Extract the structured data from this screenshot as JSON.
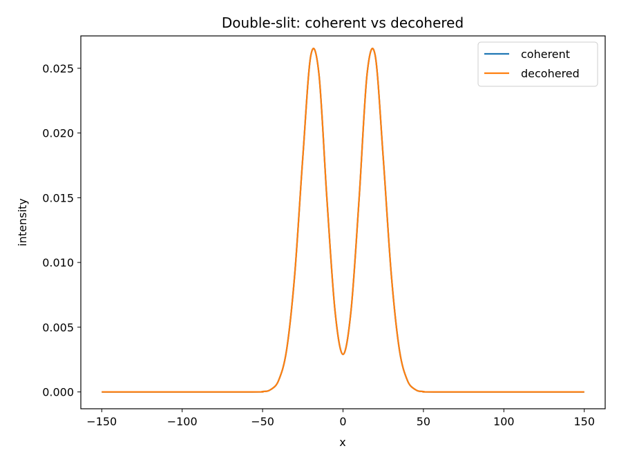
{
  "chart_data": {
    "type": "line",
    "title": "Double-slit: coherent vs decohered",
    "xlabel": "x",
    "ylabel": "intensity",
    "xlim": [
      -163,
      163
    ],
    "ylim": [
      -0.0013,
      0.0275
    ],
    "xticks": [
      -150,
      -100,
      -50,
      0,
      50,
      100,
      150
    ],
    "xtick_labels": [
      "−150",
      "−100",
      "−50",
      "0",
      "50",
      "100",
      "150"
    ],
    "yticks": [
      0.0,
      0.005,
      0.01,
      0.015,
      0.02,
      0.025
    ],
    "ytick_labels": [
      "0.000",
      "0.005",
      "0.010",
      "0.015",
      "0.020",
      "0.025"
    ],
    "grid": false,
    "legend_position": "top-right",
    "x": [
      -150,
      -60,
      -50,
      -45,
      -40,
      -35,
      -30,
      -25,
      -20,
      -15,
      -10,
      -5,
      0,
      5,
      10,
      15,
      20,
      25,
      30,
      35,
      40,
      45,
      50,
      60,
      150
    ],
    "series": [
      {
        "name": "coherent",
        "color": "#1f77b4",
        "values": [
          0.0,
          0.0,
          3e-05,
          0.00018,
          0.0009,
          0.0033,
          0.0091,
          0.0181,
          0.026,
          0.0246,
          0.0149,
          0.0063,
          0.0029,
          0.0063,
          0.0149,
          0.0246,
          0.026,
          0.0181,
          0.0091,
          0.0033,
          0.0009,
          0.00018,
          3e-05,
          0.0,
          0.0
        ]
      },
      {
        "name": "decohered",
        "color": "#ff7f0e",
        "values": [
          0.0,
          0.0,
          3e-05,
          0.00018,
          0.0009,
          0.0033,
          0.0091,
          0.0181,
          0.026,
          0.0246,
          0.0149,
          0.0063,
          0.0029,
          0.0063,
          0.0149,
          0.0246,
          0.026,
          0.0181,
          0.0091,
          0.0033,
          0.0009,
          0.00018,
          3e-05,
          0.0,
          0.0
        ]
      }
    ]
  }
}
